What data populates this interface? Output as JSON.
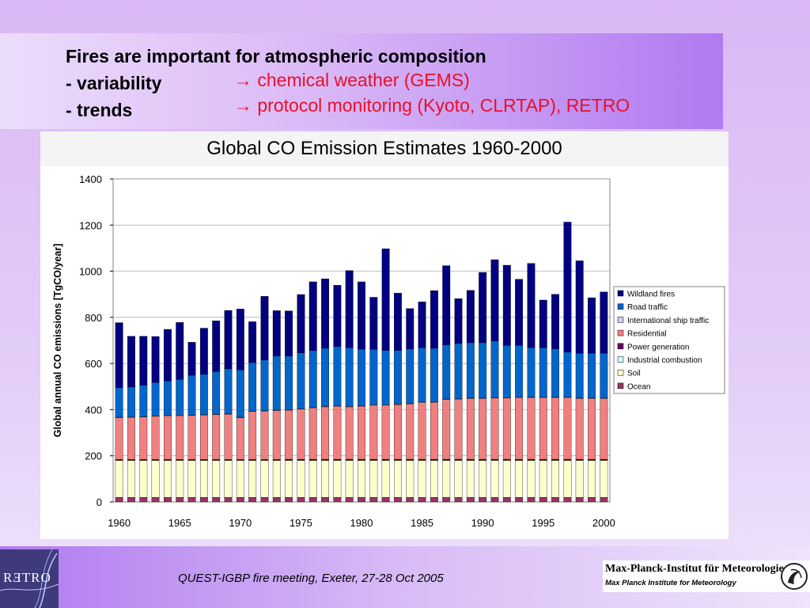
{
  "header": {
    "line1": "Fires are important for atmospheric composition",
    "line2": "- variability",
    "line3": "- trends",
    "note1": "→ chemical weather (GEMS)",
    "note2": "→ protocol monitoring (Kyoto, CLRTAP), RETRO"
  },
  "chart_data": {
    "type": "bar",
    "stacked": true,
    "title": "Global CO Emission Estimates 1960-2000",
    "ylabel": "Global annual CO emissions [TgCO/year]",
    "xlabel": "",
    "ylim": [
      0,
      1400
    ],
    "yticks": [
      0,
      200,
      400,
      600,
      800,
      1000,
      1200,
      1400
    ],
    "xticks": [
      1960,
      1965,
      1970,
      1975,
      1980,
      1985,
      1990,
      1995,
      2000
    ],
    "grid": true,
    "legend_position": "right",
    "categories": [
      1960,
      1961,
      1962,
      1963,
      1964,
      1965,
      1966,
      1967,
      1968,
      1969,
      1970,
      1971,
      1972,
      1973,
      1974,
      1975,
      1976,
      1977,
      1978,
      1979,
      1980,
      1981,
      1982,
      1983,
      1984,
      1985,
      1986,
      1987,
      1988,
      1989,
      1990,
      1991,
      1992,
      1993,
      1994,
      1995,
      1996,
      1997,
      1998,
      1999,
      2000
    ],
    "series": [
      {
        "name": "Ocean",
        "color": "#993366",
        "values": [
          20,
          20,
          20,
          20,
          20,
          20,
          20,
          20,
          20,
          20,
          20,
          20,
          20,
          20,
          20,
          20,
          20,
          20,
          20,
          20,
          20,
          20,
          20,
          20,
          20,
          20,
          20,
          20,
          20,
          20,
          20,
          20,
          20,
          20,
          20,
          20,
          20,
          20,
          20,
          20,
          20
        ]
      },
      {
        "name": "Soil",
        "color": "#ffffcc",
        "values": [
          160,
          160,
          160,
          160,
          160,
          160,
          160,
          160,
          160,
          160,
          160,
          160,
          160,
          160,
          160,
          160,
          160,
          160,
          160,
          160,
          160,
          160,
          160,
          160,
          160,
          160,
          160,
          160,
          160,
          160,
          160,
          160,
          160,
          160,
          160,
          160,
          160,
          160,
          160,
          160,
          160
        ]
      },
      {
        "name": "Industrial combustion",
        "color": "#ccffff",
        "values": [
          1,
          1,
          1,
          1,
          1,
          1,
          1,
          1,
          1,
          1,
          1,
          1,
          1,
          1,
          1,
          1,
          1,
          1,
          1,
          1,
          1,
          1,
          1,
          1,
          1,
          1,
          1,
          1,
          1,
          1,
          1,
          1,
          1,
          1,
          1,
          1,
          1,
          1,
          1,
          1,
          1
        ]
      },
      {
        "name": "Power generation",
        "color": "#660066",
        "values": [
          3,
          3,
          3,
          3,
          3,
          3,
          3,
          3,
          3,
          3,
          3,
          3,
          3,
          3,
          4,
          4,
          4,
          4,
          4,
          4,
          4,
          4,
          4,
          4,
          4,
          4,
          4,
          4,
          4,
          4,
          4,
          4,
          4,
          4,
          4,
          4,
          4,
          4,
          4,
          4,
          4
        ]
      },
      {
        "name": "Residential",
        "color": "#f08080",
        "values": [
          181,
          182,
          184,
          187,
          189,
          190,
          191,
          192,
          194,
          196,
          181,
          208,
          209,
          212,
          213,
          217,
          222,
          227,
          230,
          227,
          230,
          234,
          234,
          237,
          240,
          246,
          247,
          259,
          260,
          263,
          263,
          265,
          265,
          267,
          267,
          267,
          267,
          267,
          263,
          263,
          263
        ]
      },
      {
        "name": "International ship traffic",
        "color": "#ccccff",
        "values": [
          2,
          2,
          2,
          2,
          2,
          2,
          2,
          2,
          2,
          2,
          2,
          2,
          2,
          2,
          2,
          2,
          2,
          2,
          2,
          2,
          2,
          2,
          2,
          2,
          2,
          2,
          2,
          2,
          2,
          2,
          2,
          2,
          2,
          2,
          2,
          2,
          2,
          2,
          2,
          2,
          2
        ]
      },
      {
        "name": "Road traffic",
        "color": "#0066cc",
        "values": [
          128,
          130,
          135,
          145,
          150,
          155,
          172,
          175,
          185,
          195,
          205,
          210,
          220,
          234,
          232,
          242,
          247,
          252,
          257,
          254,
          245,
          240,
          236,
          233,
          236,
          235,
          232,
          235,
          240,
          240,
          240,
          246,
          226,
          225,
          215,
          215,
          210,
          195,
          194,
          194,
          194
        ]
      },
      {
        "name": "Wildland fires",
        "color": "#000080",
        "values": [
          282,
          220,
          213,
          199,
          223,
          247,
          143,
          200,
          220,
          253,
          264,
          177,
          276,
          197,
          196,
          253,
          298,
          301,
          265,
          335,
          292,
          226,
          440,
          248,
          175,
          199,
          250,
          343,
          194,
          227,
          305,
          352,
          348,
          286,
          365,
          206,
          236,
          564,
          401,
          241,
          266
        ]
      }
    ]
  },
  "footer": {
    "text": "QUEST-IGBP fire meeting, Exeter, 27-28 Oct 2005",
    "retro_logo": "RƎTRO",
    "mpi_name": "Max-Planck-Institut für Meteorologie",
    "mpi_sub": "Max Planck Institute for Meteorology"
  }
}
